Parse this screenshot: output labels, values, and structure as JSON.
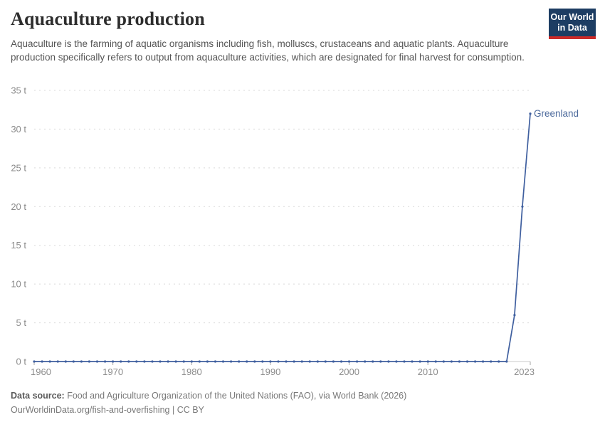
{
  "header": {
    "title": "Aquaculture production",
    "subtitle": "Aquaculture is the farming of aquatic organisms including fish, molluscs, crustaceans and aquatic plants. Aquaculture production specifically refers to output from aquaculture activities, which are designated for final harvest for consumption."
  },
  "logo": {
    "line1": "Our World",
    "line2": "in Data",
    "bg_color": "#1d3d63",
    "accent_color": "#cc2a28"
  },
  "chart_data": {
    "type": "line",
    "title": "Aquaculture production",
    "unit": "t",
    "xlabel": "",
    "ylabel": "",
    "xlim": [
      1960,
      2023
    ],
    "ylim": [
      0,
      35
    ],
    "grid": "horizontal-dashed",
    "legend_position": "end-of-line-label",
    "xticks": [
      1960,
      1970,
      1980,
      1990,
      2000,
      2010,
      2023
    ],
    "yticks": [
      0,
      5,
      10,
      15,
      20,
      25,
      30,
      35
    ],
    "ytick_labels": [
      "0 t",
      "5 t",
      "10 t",
      "15 t",
      "20 t",
      "25 t",
      "30 t",
      "35 t"
    ],
    "series": [
      {
        "name": "Greenland",
        "color": "#3f5f9f",
        "label_color": "#4c6a9c",
        "x": [
          1960,
          1961,
          1962,
          1963,
          1964,
          1965,
          1966,
          1967,
          1968,
          1969,
          1970,
          1971,
          1972,
          1973,
          1974,
          1975,
          1976,
          1977,
          1978,
          1979,
          1980,
          1981,
          1982,
          1983,
          1984,
          1985,
          1986,
          1987,
          1988,
          1989,
          1990,
          1991,
          1992,
          1993,
          1994,
          1995,
          1996,
          1997,
          1998,
          1999,
          2000,
          2001,
          2002,
          2003,
          2004,
          2005,
          2006,
          2007,
          2008,
          2009,
          2010,
          2011,
          2012,
          2013,
          2014,
          2015,
          2016,
          2017,
          2018,
          2019,
          2020,
          2021,
          2022,
          2023
        ],
        "values": [
          0,
          0,
          0,
          0,
          0,
          0,
          0,
          0,
          0,
          0,
          0,
          0,
          0,
          0,
          0,
          0,
          0,
          0,
          0,
          0,
          0,
          0,
          0,
          0,
          0,
          0,
          0,
          0,
          0,
          0,
          0,
          0,
          0,
          0,
          0,
          0,
          0,
          0,
          0,
          0,
          0,
          0,
          0,
          0,
          0,
          0,
          0,
          0,
          0,
          0,
          0,
          0,
          0,
          0,
          0,
          0,
          0,
          0,
          0,
          0,
          0,
          6,
          20,
          32
        ]
      }
    ],
    "colors": {
      "grid": "#d9d9d9",
      "axis": "#c8c8c8",
      "tick": "#a6a6a6",
      "tick_label": "#8b8b8b"
    }
  },
  "footer": {
    "source_label": "Data source:",
    "source_text": " Food and Agriculture Organization of the United Nations (FAO), via World Bank (2026)",
    "url": "OurWorldinData.org/fish-and-overfishing",
    "separator": " | ",
    "license": "CC BY"
  }
}
